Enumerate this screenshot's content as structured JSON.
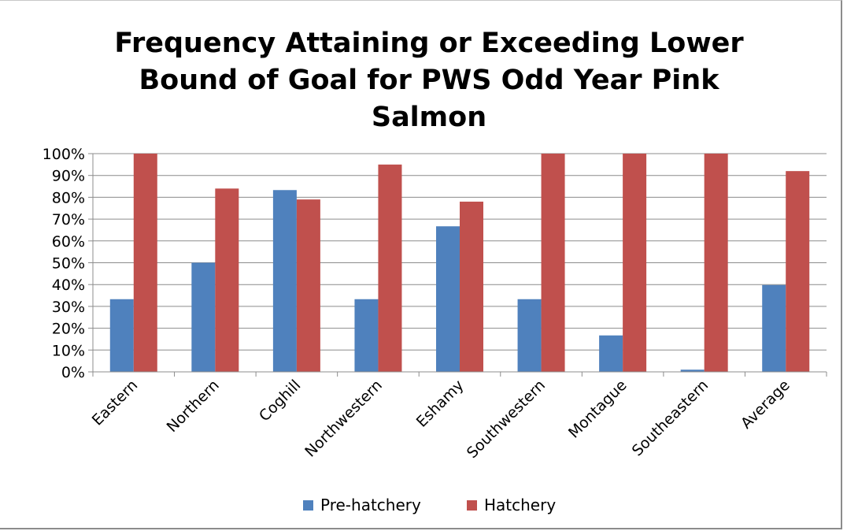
{
  "chart_data": {
    "type": "bar",
    "title": "Frequency Attaining or Exceeding  Lower Bound of Goal for PWS Odd Year Pink Salmon",
    "xlabel": "",
    "ylabel": "",
    "categories": [
      "Eastern",
      "Northern",
      "Coghill",
      "Northwestern",
      "Eshamy",
      "Southwestern",
      "Montague",
      "Southeastern",
      "Average"
    ],
    "series": [
      {
        "name": "Pre-hatchery",
        "color": "#4f81bd",
        "values": [
          33.3,
          50,
          83.3,
          33.3,
          66.7,
          33.3,
          16.7,
          1,
          39.8
        ]
      },
      {
        "name": "Hatchery",
        "color": "#c0504d",
        "values": [
          100,
          84,
          79,
          95,
          78,
          100,
          100,
          100,
          92
        ]
      }
    ],
    "ylim": [
      0,
      100
    ],
    "yticks": [
      0,
      10,
      20,
      30,
      40,
      50,
      60,
      70,
      80,
      90,
      100
    ],
    "ytick_labels": [
      "0%",
      "10%",
      "20%",
      "30%",
      "40%",
      "50%",
      "60%",
      "70%",
      "80%",
      "90%",
      "100%"
    ],
    "grid": true,
    "legend_position": "bottom"
  }
}
